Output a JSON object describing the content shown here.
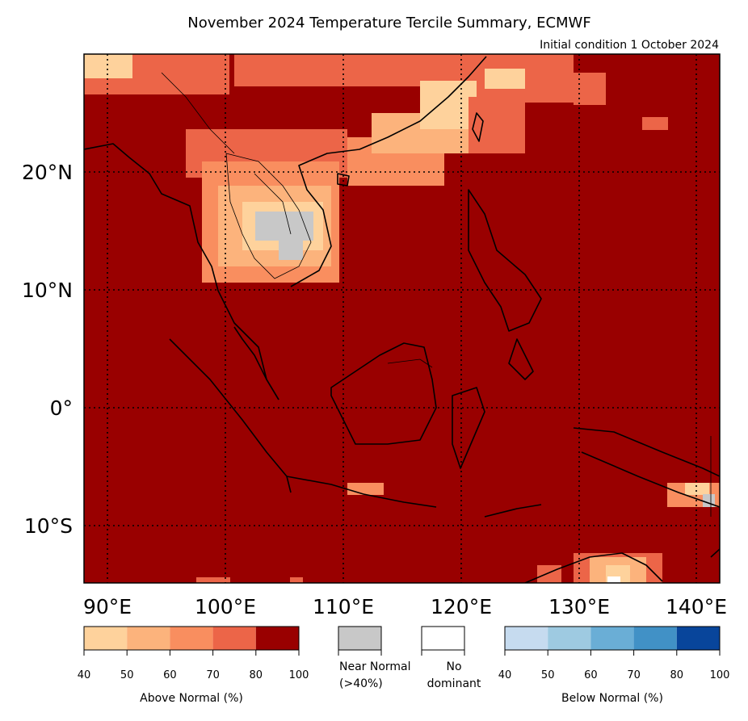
{
  "title": "November 2024 Temperature Tercile Summary, ECMWF",
  "subtitle": "Initial condition 1 October 2024",
  "map": {
    "lon_range": [
      88,
      142
    ],
    "lat_range": [
      -15,
      30
    ],
    "lon_ticks": [
      "90°E",
      "100°E",
      "110°E",
      "120°E",
      "130°E",
      "140°E"
    ],
    "lat_ticks": [
      "20°N",
      "10°N",
      "0°",
      "10°S"
    ],
    "gridlines": "dotted",
    "dominant_category": "Above Normal 80-100%"
  },
  "legend": {
    "above": {
      "label": "Above Normal (%)",
      "ticks": [
        "40",
        "50",
        "60",
        "70",
        "80",
        "100"
      ],
      "colors": [
        "#fed29c",
        "#fcb37c",
        "#f98e5f",
        "#ec6548",
        "#990000"
      ]
    },
    "near": {
      "label_line1": "Near Normal",
      "label_line2": "(>40%)",
      "color": "#c8c8c8"
    },
    "none": {
      "label_line1": "No",
      "label_line2": "dominant",
      "color": "#ffffff"
    },
    "below": {
      "label": "Below Normal (%)",
      "ticks": [
        "40",
        "50",
        "60",
        "70",
        "80",
        "100"
      ],
      "colors": [
        "#c6dbef",
        "#9ecae1",
        "#6aaed6",
        "#4191c6",
        "#08459b"
      ]
    }
  }
}
